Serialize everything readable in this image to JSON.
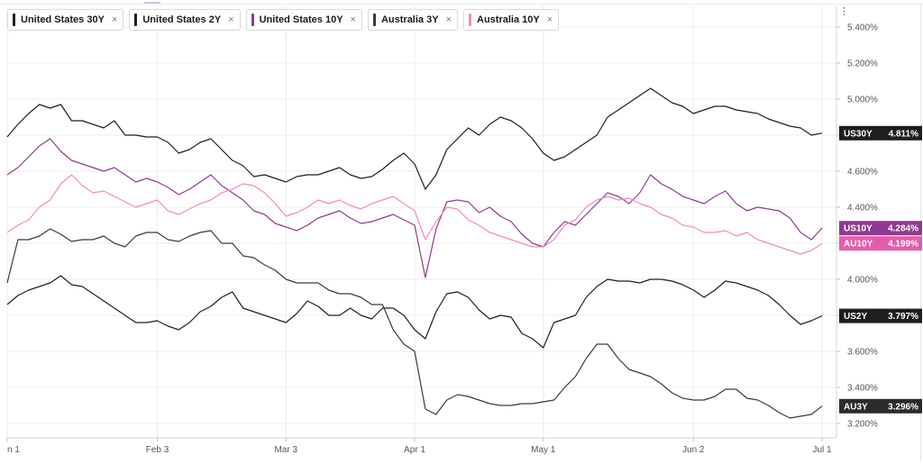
{
  "legend": [
    {
      "label": "United States 30Y",
      "color": "#1f1f1f"
    },
    {
      "label": "United States 2Y",
      "color": "#1f1f1f"
    },
    {
      "label": "United States 10Y",
      "color": "#8e3b8f"
    },
    {
      "label": "Australia 3Y",
      "color": "#3a3a3a"
    },
    {
      "label": "Australia 10Y",
      "color": "#f08ac0"
    }
  ],
  "close_glyph": "×",
  "menu_glyph": "⋮",
  "chart_data": {
    "type": "line",
    "x": [
      "Jan 1",
      "Jan 3",
      "Jan 6",
      "Jan 8",
      "Jan 10",
      "Jan 13",
      "Jan 15",
      "Jan 17",
      "Jan 20",
      "Jan 22",
      "Jan 24",
      "Jan 27",
      "Jan 29",
      "Jan 31",
      "Feb 3",
      "Feb 5",
      "Feb 7",
      "Feb 10",
      "Feb 12",
      "Feb 14",
      "Feb 17",
      "Feb 19",
      "Feb 21",
      "Feb 24",
      "Feb 26",
      "Feb 28",
      "Mar 3",
      "Mar 5",
      "Mar 7",
      "Mar 10",
      "Mar 12",
      "Mar 14",
      "Mar 17",
      "Mar 19",
      "Mar 21",
      "Mar 24",
      "Mar 26",
      "Mar 28",
      "Apr 1",
      "Apr 3",
      "Apr 5",
      "Apr 8",
      "Apr 10",
      "Apr 12",
      "Apr 15",
      "Apr 17",
      "Apr 19",
      "Apr 22",
      "Apr 24",
      "Apr 26",
      "May 1",
      "May 3",
      "May 6",
      "May 8",
      "May 10",
      "May 13",
      "May 15",
      "May 17",
      "May 20",
      "May 22",
      "May 24",
      "May 27",
      "May 29",
      "May 31",
      "Jun 2",
      "Jun 4",
      "Jun 6",
      "Jun 9",
      "Jun 11",
      "Jun 13",
      "Jun 16",
      "Jun 18",
      "Jun 20",
      "Jun 23",
      "Jun 25",
      "Jun 27",
      "Jul 1"
    ],
    "x_ticks": [
      "n 1",
      "Feb 3",
      "Mar 3",
      "Apr 1",
      "May 1",
      "Jun 2",
      "Jul 1"
    ],
    "y_ticks": [
      "3.200%",
      "3.400%",
      "3.600%",
      "3.800%",
      "4.000%",
      "4.200%",
      "4.400%",
      "4.600%",
      "4.800%",
      "5.000%",
      "5.200%",
      "5.400%"
    ],
    "ylim": [
      3.12,
      5.52
    ],
    "grid": true,
    "legend_position": "top-left",
    "series": [
      {
        "name": "United States 30Y",
        "label": "US30Y",
        "last": "4.811%",
        "color": "#1f1f1f",
        "badge": "#1f1f1f",
        "values": [
          4.79,
          4.86,
          4.92,
          4.97,
          4.95,
          4.97,
          4.88,
          4.88,
          4.86,
          4.84,
          4.88,
          4.8,
          4.8,
          4.79,
          4.79,
          4.76,
          4.7,
          4.72,
          4.76,
          4.78,
          4.72,
          4.66,
          4.63,
          4.57,
          4.58,
          4.56,
          4.54,
          4.57,
          4.58,
          4.58,
          4.6,
          4.62,
          4.58,
          4.56,
          4.57,
          4.61,
          4.66,
          4.7,
          4.64,
          4.5,
          4.58,
          4.72,
          4.78,
          4.84,
          4.8,
          4.86,
          4.9,
          4.88,
          4.84,
          4.78,
          4.7,
          4.66,
          4.68,
          4.72,
          4.76,
          4.8,
          4.9,
          4.94,
          4.98,
          5.02,
          5.06,
          5.02,
          4.98,
          4.96,
          4.92,
          4.94,
          4.96,
          4.96,
          4.94,
          4.93,
          4.92,
          4.89,
          4.87,
          4.85,
          4.84,
          4.8,
          4.811
        ]
      },
      {
        "name": "United States 2Y",
        "label": "US2Y",
        "last": "3.797%",
        "color": "#1f1f1f",
        "badge": "#1f1f1f",
        "values": [
          3.86,
          3.91,
          3.94,
          3.96,
          3.98,
          4.02,
          3.97,
          3.96,
          3.92,
          3.88,
          3.84,
          3.8,
          3.76,
          3.76,
          3.77,
          3.74,
          3.72,
          3.76,
          3.82,
          3.85,
          3.9,
          3.93,
          3.84,
          3.82,
          3.8,
          3.78,
          3.76,
          3.81,
          3.88,
          3.85,
          3.8,
          3.8,
          3.84,
          3.8,
          3.78,
          3.84,
          3.84,
          3.8,
          3.72,
          3.67,
          3.82,
          3.92,
          3.93,
          3.9,
          3.83,
          3.78,
          3.8,
          3.79,
          3.7,
          3.67,
          3.62,
          3.76,
          3.78,
          3.8,
          3.9,
          3.96,
          4.0,
          3.99,
          3.99,
          3.98,
          4.0,
          4.0,
          3.99,
          3.97,
          3.94,
          3.9,
          3.94,
          3.99,
          3.98,
          3.96,
          3.94,
          3.91,
          3.86,
          3.8,
          3.75,
          3.77,
          3.797
        ]
      },
      {
        "name": "United States 10Y",
        "label": "US10Y",
        "last": "4.284%",
        "color": "#8e3b8f",
        "badge": "#8e3b8f",
        "values": [
          4.58,
          4.62,
          4.68,
          4.74,
          4.78,
          4.71,
          4.66,
          4.64,
          4.62,
          4.6,
          4.62,
          4.58,
          4.54,
          4.56,
          4.54,
          4.51,
          4.47,
          4.5,
          4.54,
          4.58,
          4.52,
          4.48,
          4.44,
          4.38,
          4.36,
          4.31,
          4.29,
          4.27,
          4.3,
          4.34,
          4.36,
          4.38,
          4.34,
          4.31,
          4.32,
          4.34,
          4.36,
          4.33,
          4.3,
          4.01,
          4.28,
          4.43,
          4.44,
          4.43,
          4.37,
          4.4,
          4.35,
          4.32,
          4.25,
          4.2,
          4.18,
          4.26,
          4.32,
          4.3,
          4.36,
          4.42,
          4.48,
          4.46,
          4.42,
          4.48,
          4.58,
          4.53,
          4.5,
          4.46,
          4.44,
          4.42,
          4.46,
          4.49,
          4.42,
          4.38,
          4.4,
          4.39,
          4.38,
          4.34,
          4.26,
          4.22,
          4.284
        ]
      },
      {
        "name": "Australia 3Y",
        "label": "AU3Y",
        "last": "3.296%",
        "color": "#3a3a3a",
        "badge": "#2b2b2b",
        "values": [
          3.98,
          4.22,
          4.22,
          4.24,
          4.28,
          4.25,
          4.21,
          4.22,
          4.22,
          4.24,
          4.2,
          4.18,
          4.24,
          4.26,
          4.26,
          4.22,
          4.21,
          4.24,
          4.26,
          4.27,
          4.2,
          4.2,
          4.13,
          4.12,
          4.08,
          4.05,
          4.0,
          3.98,
          3.98,
          3.98,
          3.94,
          3.92,
          3.92,
          3.9,
          3.86,
          3.86,
          3.72,
          3.64,
          3.6,
          3.28,
          3.25,
          3.33,
          3.36,
          3.35,
          3.33,
          3.31,
          3.3,
          3.3,
          3.31,
          3.31,
          3.32,
          3.33,
          3.4,
          3.46,
          3.56,
          3.64,
          3.64,
          3.56,
          3.5,
          3.48,
          3.46,
          3.42,
          3.37,
          3.34,
          3.33,
          3.33,
          3.35,
          3.39,
          3.39,
          3.34,
          3.33,
          3.3,
          3.26,
          3.23,
          3.24,
          3.25,
          3.296
        ]
      },
      {
        "name": "Australia 10Y",
        "label": "AU10Y",
        "last": "4.199%",
        "color": "#f08ac0",
        "badge": "#e65caa",
        "values": [
          4.26,
          4.3,
          4.33,
          4.4,
          4.44,
          4.53,
          4.58,
          4.52,
          4.48,
          4.49,
          4.46,
          4.43,
          4.4,
          4.42,
          4.44,
          4.38,
          4.36,
          4.39,
          4.42,
          4.44,
          4.48,
          4.5,
          4.53,
          4.52,
          4.48,
          4.42,
          4.35,
          4.37,
          4.4,
          4.44,
          4.42,
          4.44,
          4.41,
          4.39,
          4.42,
          4.44,
          4.46,
          4.42,
          4.38,
          4.22,
          4.32,
          4.4,
          4.39,
          4.33,
          4.3,
          4.26,
          4.24,
          4.22,
          4.2,
          4.18,
          4.18,
          4.22,
          4.3,
          4.33,
          4.4,
          4.44,
          4.46,
          4.44,
          4.45,
          4.42,
          4.4,
          4.36,
          4.34,
          4.3,
          4.29,
          4.26,
          4.26,
          4.27,
          4.24,
          4.26,
          4.22,
          4.2,
          4.18,
          4.16,
          4.14,
          4.16,
          4.199
        ]
      }
    ]
  }
}
